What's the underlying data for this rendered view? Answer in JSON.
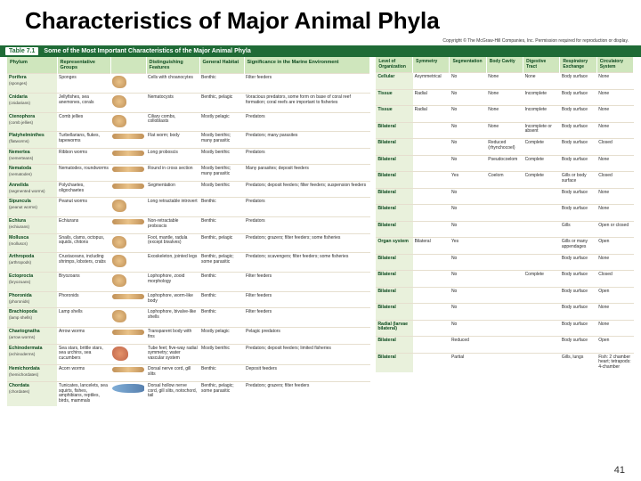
{
  "title": "Characteristics of Major Animal Phyla",
  "copyright": "Copyright © The McGraw-Hill Companies, Inc. Permission required for reproduction or display.",
  "caption_num": "Table 7.1",
  "caption_text": "Some of the Most Important Characteristics of the Major Animal Phyla",
  "colors": {
    "caption_bg": "#1f6b36",
    "header_bg": "#cfe6bd",
    "phylum_col_bg": "#e9f1dc"
  },
  "left_headers": [
    "Phylum",
    "Representative Groups",
    "",
    "Distinguishing Features",
    "General Habitat",
    "Significance in the Marine Environment"
  ],
  "right_headers": [
    "Level of Organization",
    "Symmetry",
    "Segmentation",
    "Body Cavity",
    "Digestive Tract",
    "Respiratory Exchange",
    "Circulatory System"
  ],
  "rows": [
    {
      "phylum": "Porifera",
      "common": "(sponges)",
      "groups": "Sponges",
      "org": "round",
      "feat": "Cells with choanocytes",
      "hab": "Benthic",
      "sig": "Filter feeders",
      "lvl": "Cellular",
      "sym": "Asymmetrical",
      "seg": "No",
      "cav": "None",
      "dig": "None",
      "resp": "Body surface",
      "circ": "None"
    },
    {
      "phylum": "Cnidaria",
      "common": "(cnidarians)",
      "groups": "Jellyfishes, sea anemones, corals",
      "org": "round",
      "feat": "Nematocysts",
      "hab": "Benthic, pelagic",
      "sig": "Voracious predators, some form on base of coral reef formation; coral reefs are important to fisheries",
      "lvl": "Tissue",
      "sym": "Radial",
      "seg": "No",
      "cav": "None",
      "dig": "Incomplete",
      "resp": "Body surface",
      "circ": "None"
    },
    {
      "phylum": "Ctenophora",
      "common": "(comb jellies)",
      "groups": "Comb jellies",
      "org": "round",
      "feat": "Ciliary combs, colloblasts",
      "hab": "Mostly pelagic",
      "sig": "Predators",
      "lvl": "Tissue",
      "sym": "Radial",
      "seg": "No",
      "cav": "None",
      "dig": "Incomplete",
      "resp": "Body surface",
      "circ": "None"
    },
    {
      "phylum": "Platyhelminthes",
      "common": "(flatworms)",
      "groups": "Turbellarians, flukes, tapeworms",
      "org": "long",
      "feat": "Flat worm; body",
      "hab": "Mostly benthic; many parasitic",
      "sig": "Predators; many parasites",
      "lvl": "Bilateral",
      "sym": "",
      "seg": "No",
      "cav": "None",
      "dig": "Incomplete or absent",
      "resp": "Body surface",
      "circ": "None"
    },
    {
      "phylum": "Nemertea",
      "common": "(nemerteans)",
      "groups": "Ribbon worms",
      "org": "long",
      "feat": "Long proboscis",
      "hab": "Mostly benthic",
      "sig": "Predators",
      "lvl": "Bilateral",
      "sym": "",
      "seg": "No",
      "cav": "Reduced (rhynchocoel)",
      "dig": "Complete",
      "resp": "Body surface",
      "circ": "Closed"
    },
    {
      "phylum": "Nematoda",
      "common": "(nematodes)",
      "groups": "Nematodes, roundworms",
      "org": "long",
      "feat": "Round in cross section",
      "hab": "Mostly benthic; many parasitic",
      "sig": "Many parasites; deposit feeders",
      "lvl": "Bilateral",
      "sym": "",
      "seg": "No",
      "cav": "Pseudocoelom",
      "dig": "Complete",
      "resp": "Body surface",
      "circ": "None"
    },
    {
      "phylum": "Annelida",
      "common": "(segmented worms)",
      "groups": "Polychaetes, oligochaetes",
      "org": "long",
      "feat": "Segmentation",
      "hab": "Mostly benthic",
      "sig": "Predators; deposit feeders; filter feeders; suspension feeders",
      "lvl": "Bilateral",
      "sym": "",
      "seg": "Yes",
      "cav": "Coelom",
      "dig": "Complete",
      "resp": "Gills or body surface",
      "circ": "Closed"
    },
    {
      "phylum": "Sipuncula",
      "common": "(peanut worms)",
      "groups": "Peanut worms",
      "org": "round",
      "feat": "Long retractable introvert",
      "hab": "Benthic",
      "sig": "Predators",
      "lvl": "Bilateral",
      "sym": "",
      "seg": "No",
      "cav": "",
      "dig": "",
      "resp": "Body surface",
      "circ": "None"
    },
    {
      "phylum": "Echiura",
      "common": "(echiurans)",
      "groups": "Echiurans",
      "org": "long",
      "feat": "Non-retractable proboscis",
      "hab": "Benthic",
      "sig": "Predators",
      "lvl": "Bilateral",
      "sym": "",
      "seg": "No",
      "cav": "",
      "dig": "",
      "resp": "Body surface",
      "circ": "None"
    },
    {
      "phylum": "Mollusca",
      "common": "(molluscs)",
      "groups": "Snails, clams, octopus, squids, chitons",
      "org": "round",
      "feat": "Foot, mantle, radula (except bivalves)",
      "hab": "Benthic, pelagic",
      "sig": "Predators; grazers; filter feeders; some fisheries",
      "lvl": "Bilateral",
      "sym": "",
      "seg": "No",
      "cav": "",
      "dig": "",
      "resp": "Gills",
      "circ": "Open or closed"
    },
    {
      "phylum": "Arthropoda",
      "common": "(arthropods)",
      "groups": "Crustaceans, including shrimps, lobsters, crabs",
      "org": "round",
      "feat": "Exoskeleton, jointed legs",
      "hab": "Benthic, pelagic; some parasitic",
      "sig": "Predators; scavengers; filter feeders; some fisheries",
      "lvl": "Organ system",
      "sym": "Bilateral",
      "seg": "Yes",
      "cav": "",
      "dig": "",
      "resp": "Gills or many appendages",
      "circ": "Open"
    },
    {
      "phylum": "Ectoprocta",
      "common": "(bryozoans)",
      "groups": "Bryozoans",
      "org": "round",
      "feat": "Lophophore, zooid morphology",
      "hab": "Benthic",
      "sig": "Filter feeders",
      "lvl": "Bilateral",
      "sym": "",
      "seg": "No",
      "cav": "",
      "dig": "",
      "resp": "Body surface",
      "circ": "None"
    },
    {
      "phylum": "Phoronida",
      "common": "(phoronids)",
      "groups": "Phoronids",
      "org": "long",
      "feat": "Lophophore, worm-like body",
      "hab": "Benthic",
      "sig": "Filter feeders",
      "lvl": "Bilateral",
      "sym": "",
      "seg": "No",
      "cav": "",
      "dig": "Complete",
      "resp": "Body surface",
      "circ": "Closed"
    },
    {
      "phylum": "Brachiopoda",
      "common": "(lamp shells)",
      "groups": "Lamp shells",
      "org": "round",
      "feat": "Lophophore, bivalve-like shells",
      "hab": "Benthic",
      "sig": "Filter feeders",
      "lvl": "Bilateral",
      "sym": "",
      "seg": "No",
      "cav": "",
      "dig": "",
      "resp": "Body surface",
      "circ": "Open"
    },
    {
      "phylum": "Chaetognatha",
      "common": "(arrow worms)",
      "groups": "Arrow worms",
      "org": "long",
      "feat": "Transparent body with fins",
      "hab": "Mostly pelagic",
      "sig": "Pelagic predators",
      "lvl": "Bilateral",
      "sym": "",
      "seg": "No",
      "cav": "",
      "dig": "",
      "resp": "Body surface",
      "circ": "None"
    },
    {
      "phylum": "Echinodermata",
      "common": "(echinoderms)",
      "groups": "Sea stars, brittle stars, sea urchins, sea cucumbers",
      "org": "star",
      "feat": "Tube feet; five-way radial symmetry; water vascular system",
      "hab": "Mostly benthic",
      "sig": "Predators; deposit feeders; limited fisheries",
      "lvl": "Radial (larvae bilateral)",
      "sym": "",
      "seg": "No",
      "cav": "",
      "dig": "",
      "resp": "Body surface",
      "circ": "None"
    },
    {
      "phylum": "Hemichordata",
      "common": "(hemichordates)",
      "groups": "Acorn worms",
      "org": "long",
      "feat": "Dorsal nerve cord, gill slits",
      "hab": "Benthic",
      "sig": "Deposit feeders",
      "lvl": "Bilateral",
      "sym": "",
      "seg": "Reduced",
      "cav": "",
      "dig": "",
      "resp": "Body surface",
      "circ": "Open"
    },
    {
      "phylum": "Chordata",
      "common": "(chordates)",
      "groups": "Tunicates, lancelets, sea squirts, fishes, amphibians, reptiles, birds, mammals",
      "org": "fish",
      "feat": "Dorsal hollow nerve cord, gill slits, notochord, tail",
      "hab": "Benthic, pelagic; some parasitic",
      "sig": "Predators; grazers; filter feeders",
      "lvl": "Bilateral",
      "sym": "",
      "seg": "Partial",
      "cav": "",
      "dig": "",
      "resp": "Gills, lungs",
      "circ": "Fish: 2 chamber heart; tetrapods: 4-chamber"
    }
  ],
  "page_number": "41"
}
